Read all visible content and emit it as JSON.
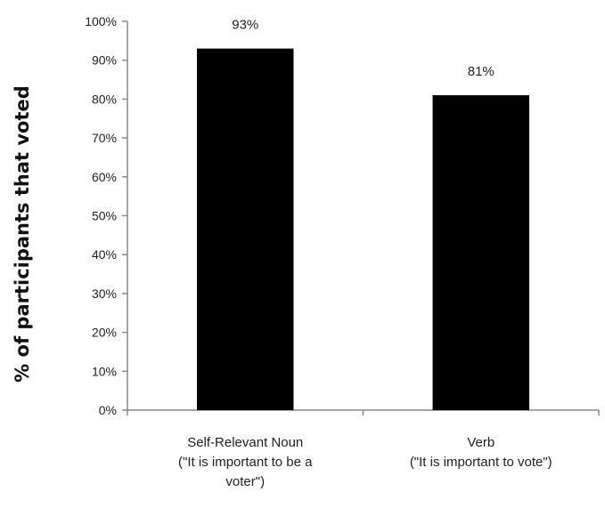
{
  "chart_data": {
    "type": "bar",
    "categories": [
      [
        "Self-Relevant Noun",
        "(\"It is important to be a",
        "voter\")"
      ],
      [
        "Verb",
        "(\"It is important to vote\")"
      ]
    ],
    "values": [
      93,
      81
    ],
    "data_labels": [
      "93%",
      "81%"
    ],
    "title": "",
    "xlabel": "",
    "ylabel": "% of participants that voted",
    "ylim": [
      0,
      100
    ],
    "y_ticks": [
      0,
      10,
      20,
      30,
      40,
      50,
      60,
      70,
      80,
      90,
      100
    ],
    "y_tick_labels": [
      "0%",
      "10%",
      "20%",
      "30%",
      "40%",
      "50%",
      "60%",
      "70%",
      "80%",
      "90%",
      "100%"
    ],
    "grid": false,
    "legend": "none",
    "bar_color": "#000000",
    "axis_color": "#888888"
  }
}
